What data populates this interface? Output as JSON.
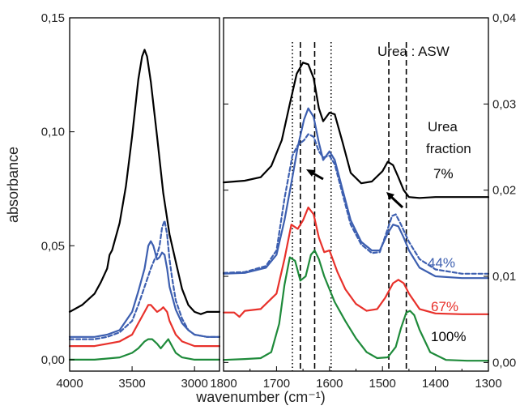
{
  "colors": {
    "black": "#000000",
    "blue": "#3d5fb0",
    "red": "#e8312b",
    "green": "#1e8a3a"
  },
  "chart_data": [
    {
      "type": "line",
      "panel": "left",
      "xlabel": "wavenumber (cm⁻¹)",
      "ylabel": "absorbance",
      "xlim": [
        4000,
        2800
      ],
      "ylim": [
        -0.005,
        0.15
      ],
      "x_ticks": [
        4000,
        3500,
        3000
      ],
      "x_tick_labels": [
        "4000",
        "3500",
        "3000"
      ],
      "y_ticks": [
        0,
        0.05,
        0.1,
        0.15
      ],
      "y_tick_labels": [
        "0,00",
        "0,05",
        "0,10",
        "0,15"
      ],
      "series": [
        {
          "color": "#000000",
          "style": "solid",
          "x": [
            4000,
            3900,
            3800,
            3750,
            3700,
            3680,
            3660,
            3640,
            3600,
            3550,
            3500,
            3450,
            3420,
            3400,
            3380,
            3350,
            3300,
            3250,
            3200,
            3150,
            3100,
            3050,
            3000,
            2950,
            2900,
            2800
          ],
          "y": [
            0.021,
            0.024,
            0.029,
            0.034,
            0.04,
            0.046,
            0.048,
            0.052,
            0.06,
            0.076,
            0.098,
            0.123,
            0.133,
            0.136,
            0.133,
            0.122,
            0.098,
            0.073,
            0.055,
            0.043,
            0.031,
            0.024,
            0.021,
            0.02,
            0.021,
            0.021
          ]
        },
        {
          "color": "#3d5fb0",
          "style": "solid",
          "x": [
            4000,
            3800,
            3700,
            3600,
            3500,
            3450,
            3400,
            3370,
            3350,
            3330,
            3300,
            3280,
            3260,
            3240,
            3220,
            3200,
            3150,
            3100,
            3050,
            3000,
            2900,
            2800
          ],
          "y": [
            0.01,
            0.01,
            0.011,
            0.013,
            0.021,
            0.03,
            0.04,
            0.05,
            0.052,
            0.05,
            0.044,
            0.045,
            0.047,
            0.046,
            0.04,
            0.032,
            0.022,
            0.016,
            0.013,
            0.011,
            0.01,
            0.01
          ]
        },
        {
          "color": "#3d5fb0",
          "style": "dashed",
          "x": [
            4000,
            3800,
            3700,
            3600,
            3500,
            3450,
            3400,
            3350,
            3320,
            3300,
            3280,
            3260,
            3240,
            3220,
            3200,
            3180,
            3150,
            3100,
            3050,
            3000,
            2900,
            2800
          ],
          "y": [
            0.009,
            0.009,
            0.01,
            0.012,
            0.017,
            0.024,
            0.032,
            0.04,
            0.044,
            0.046,
            0.05,
            0.058,
            0.061,
            0.055,
            0.044,
            0.036,
            0.026,
            0.018,
            0.013,
            0.011,
            0.01,
            0.01
          ]
        },
        {
          "color": "#e8312b",
          "style": "solid",
          "x": [
            4000,
            3800,
            3600,
            3500,
            3450,
            3400,
            3370,
            3350,
            3300,
            3270,
            3250,
            3220,
            3200,
            3150,
            3100,
            3000,
            2900,
            2800
          ],
          "y": [
            0.006,
            0.006,
            0.008,
            0.011,
            0.016,
            0.021,
            0.024,
            0.024,
            0.021,
            0.022,
            0.023,
            0.021,
            0.017,
            0.011,
            0.008,
            0.006,
            0.006,
            0.006
          ]
        },
        {
          "color": "#1e8a3a",
          "style": "solid",
          "x": [
            4000,
            3800,
            3600,
            3500,
            3450,
            3400,
            3370,
            3340,
            3300,
            3270,
            3240,
            3210,
            3180,
            3150,
            3100,
            3000,
            2900,
            2800
          ],
          "y": [
            0.0,
            0.0,
            0.001,
            0.003,
            0.005,
            0.008,
            0.009,
            0.009,
            0.007,
            0.005,
            0.007,
            0.009,
            0.006,
            0.003,
            0.001,
            0.0,
            0.0,
            0.0
          ]
        }
      ]
    },
    {
      "type": "line",
      "panel": "right",
      "xlabel": "wavenumber (cm⁻¹)",
      "xlim": [
        1800,
        1300
      ],
      "ylim": [
        -0.001,
        0.04
      ],
      "x_ticks": [
        1800,
        1700,
        1600,
        1500,
        1400,
        1300
      ],
      "x_tick_labels": [
        "1800",
        "1700",
        "1600",
        "1500",
        "1400",
        "1300"
      ],
      "y_ticks": [
        0,
        0.01,
        0.02,
        0.03,
        0.04
      ],
      "y_tick_labels": [
        "0,00",
        "0,01",
        "0,02",
        "0,03",
        "0,04"
      ],
      "reference_lines": [
        {
          "x": 1670,
          "style": "dotted"
        },
        {
          "x": 1655,
          "style": "dashed"
        },
        {
          "x": 1628,
          "style": "dashed"
        },
        {
          "x": 1597,
          "style": "dotted"
        },
        {
          "x": 1488,
          "style": "dashed"
        },
        {
          "x": 1455,
          "style": "dashed"
        }
      ],
      "annotations": {
        "title": "Urea : ASW",
        "legend_title_line1": "Urea",
        "legend_title_line2": "fraction"
      },
      "series": [
        {
          "name": "7%",
          "color": "#000000",
          "style": "solid",
          "x": [
            1800,
            1760,
            1730,
            1710,
            1690,
            1675,
            1662,
            1650,
            1640,
            1630,
            1620,
            1612,
            1600,
            1590,
            1575,
            1560,
            1540,
            1520,
            1500,
            1490,
            1480,
            1470,
            1460,
            1450,
            1430,
            1400,
            1350,
            1300
          ],
          "y": [
            0.0209,
            0.0211,
            0.0215,
            0.0228,
            0.0258,
            0.03,
            0.0335,
            0.0348,
            0.0346,
            0.033,
            0.0295,
            0.028,
            0.029,
            0.0288,
            0.0255,
            0.022,
            0.0208,
            0.021,
            0.0222,
            0.0233,
            0.0229,
            0.0215,
            0.02,
            0.0192,
            0.0191,
            0.0192,
            0.0192,
            0.0192
          ]
        },
        {
          "name": "44%",
          "color": "#3d5fb0",
          "style": "solid",
          "x": [
            1800,
            1760,
            1720,
            1700,
            1685,
            1670,
            1660,
            1648,
            1640,
            1630,
            1620,
            1612,
            1600,
            1590,
            1575,
            1560,
            1540,
            1520,
            1505,
            1490,
            1480,
            1470,
            1460,
            1450,
            1430,
            1400,
            1350,
            1300
          ],
          "y": [
            0.0103,
            0.0104,
            0.011,
            0.0125,
            0.0165,
            0.0215,
            0.025,
            0.0282,
            0.0295,
            0.0285,
            0.0255,
            0.0235,
            0.0245,
            0.0235,
            0.02,
            0.0165,
            0.014,
            0.013,
            0.013,
            0.015,
            0.016,
            0.0158,
            0.0145,
            0.013,
            0.011,
            0.01,
            0.0098,
            0.0098
          ]
        },
        {
          "color": "#3d5fb0",
          "style": "dashed",
          "x": [
            1800,
            1760,
            1720,
            1700,
            1685,
            1670,
            1660,
            1648,
            1640,
            1630,
            1620,
            1612,
            1600,
            1590,
            1575,
            1560,
            1540,
            1520,
            1505,
            1490,
            1482,
            1475,
            1465,
            1450,
            1430,
            1400,
            1350,
            1300
          ],
          "y": [
            0.0104,
            0.0105,
            0.0112,
            0.013,
            0.019,
            0.024,
            0.0252,
            0.0258,
            0.0265,
            0.0262,
            0.0245,
            0.0238,
            0.024,
            0.023,
            0.0195,
            0.016,
            0.0137,
            0.0127,
            0.0128,
            0.0155,
            0.017,
            0.0172,
            0.016,
            0.014,
            0.012,
            0.0108,
            0.0103,
            0.0103
          ]
        },
        {
          "name": "67%",
          "color": "#e8312b",
          "style": "solid",
          "x": [
            1800,
            1780,
            1770,
            1760,
            1730,
            1700,
            1685,
            1672,
            1660,
            1650,
            1640,
            1630,
            1620,
            1610,
            1600,
            1585,
            1570,
            1550,
            1530,
            1510,
            1495,
            1480,
            1470,
            1460,
            1450,
            1430,
            1400,
            1350,
            1300
          ],
          "y": [
            0.0058,
            0.0058,
            0.0053,
            0.006,
            0.0062,
            0.008,
            0.012,
            0.016,
            0.0155,
            0.0165,
            0.018,
            0.0172,
            0.0145,
            0.0128,
            0.013,
            0.0105,
            0.0085,
            0.0068,
            0.006,
            0.0062,
            0.0075,
            0.0092,
            0.0096,
            0.0092,
            0.008,
            0.0062,
            0.0057,
            0.0056,
            0.0056
          ]
        },
        {
          "name": "100%",
          "color": "#1e8a3a",
          "style": "solid",
          "x": [
            1800,
            1760,
            1730,
            1710,
            1695,
            1685,
            1675,
            1665,
            1655,
            1645,
            1635,
            1628,
            1620,
            1610,
            1600,
            1590,
            1570,
            1550,
            1530,
            1510,
            1490,
            1475,
            1465,
            1455,
            1448,
            1440,
            1430,
            1410,
            1380,
            1340,
            1300
          ],
          "y": [
            0.0003,
            0.0004,
            0.0005,
            0.0012,
            0.0045,
            0.009,
            0.0122,
            0.0118,
            0.0095,
            0.01,
            0.0125,
            0.013,
            0.012,
            0.01,
            0.0085,
            0.007,
            0.0048,
            0.0028,
            0.0012,
            0.0005,
            0.0006,
            0.0018,
            0.004,
            0.0058,
            0.006,
            0.0055,
            0.0038,
            0.0012,
            0.0003,
            0.0002,
            0.0002
          ]
        }
      ]
    }
  ]
}
